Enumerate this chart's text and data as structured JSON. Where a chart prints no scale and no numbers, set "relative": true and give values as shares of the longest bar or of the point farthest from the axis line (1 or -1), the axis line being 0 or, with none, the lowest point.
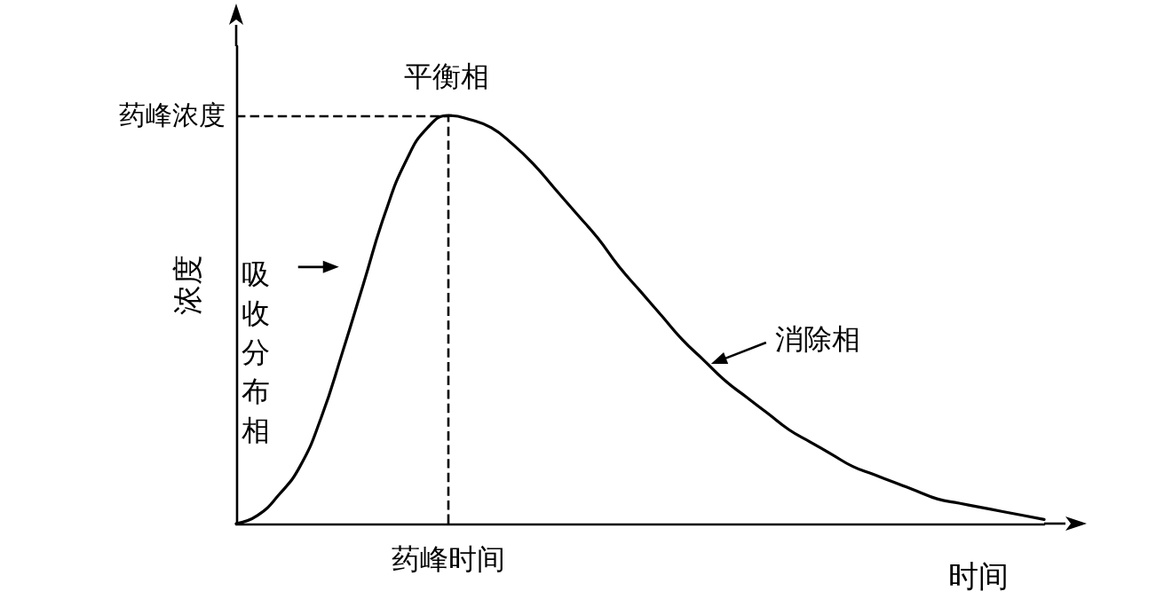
{
  "chart_data": {
    "type": "line",
    "relative": true,
    "xlabel": "时间",
    "ylabel": "浓度",
    "color": "#000000",
    "marker": "none",
    "line_style": "solid",
    "categories": [
      null,
      null,
      null,
      null,
      null,
      null,
      null,
      null,
      null,
      null,
      null,
      null,
      null,
      null,
      null,
      null,
      null,
      null,
      null,
      null,
      null,
      null,
      null,
      null,
      null,
      null,
      null,
      null,
      null,
      null,
      null,
      null,
      null,
      null,
      null,
      null,
      null,
      null,
      null
    ],
    "values": [
      0,
      0.02,
      0.07,
      0.14,
      0.26,
      0.42,
      0.59,
      0.76,
      0.89,
      0.97,
      1,
      0.99,
      0.97,
      0.93,
      0.88,
      0.82,
      0.76,
      0.7,
      0.63,
      0.57,
      0.51,
      0.45,
      0.4,
      0.35,
      0.31,
      0.27,
      0.23,
      0.2,
      0.17,
      0.14,
      0.12,
      0.1,
      0.08,
      0.06,
      0.05,
      0.04,
      0.03,
      0.02,
      0.01
    ],
    "ref_lines": [
      {
        "axis": "y",
        "value": 1,
        "label": "药峰浓度",
        "line_style": "dashed"
      },
      {
        "axis": "x",
        "label": "药峰时间",
        "line_style": "dashed"
      }
    ],
    "annotations": [
      "平衡相",
      "吸收分布相",
      "消除相"
    ],
    "grid": false
  }
}
